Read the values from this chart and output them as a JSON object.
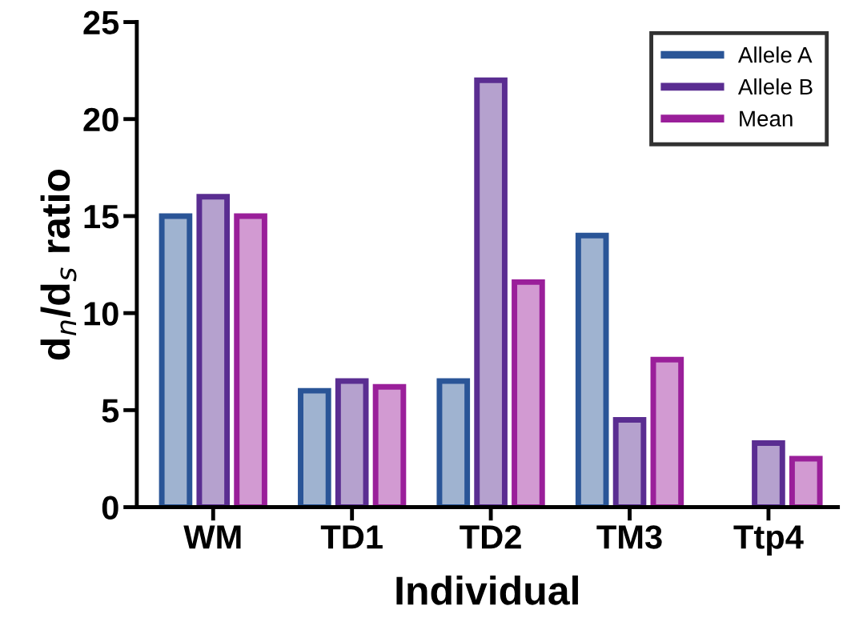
{
  "chart_data": {
    "type": "bar",
    "xlabel": "Individual",
    "ylabel": "d$_{n}$/d$_{s}$ ratio",
    "categories": [
      "WM",
      "TD1",
      "TD2",
      "TM3",
      "Ttp4"
    ],
    "series": [
      {
        "name": "Allele A",
        "color": "#2a5597",
        "values": [
          15,
          6,
          6.5,
          14,
          null
        ]
      },
      {
        "name": "Allele B",
        "color": "#5a2d91",
        "values": [
          16,
          6.5,
          22,
          4.5,
          3.3
        ]
      },
      {
        "name": "Mean",
        "color": "#9a1f9a",
        "values": [
          15,
          6.2,
          11.6,
          7.6,
          2.5
        ]
      }
    ],
    "ylim": [
      0,
      25
    ],
    "yticks": [
      0,
      5,
      10,
      15,
      20,
      25
    ],
    "grid": false,
    "legend": "top right"
  }
}
